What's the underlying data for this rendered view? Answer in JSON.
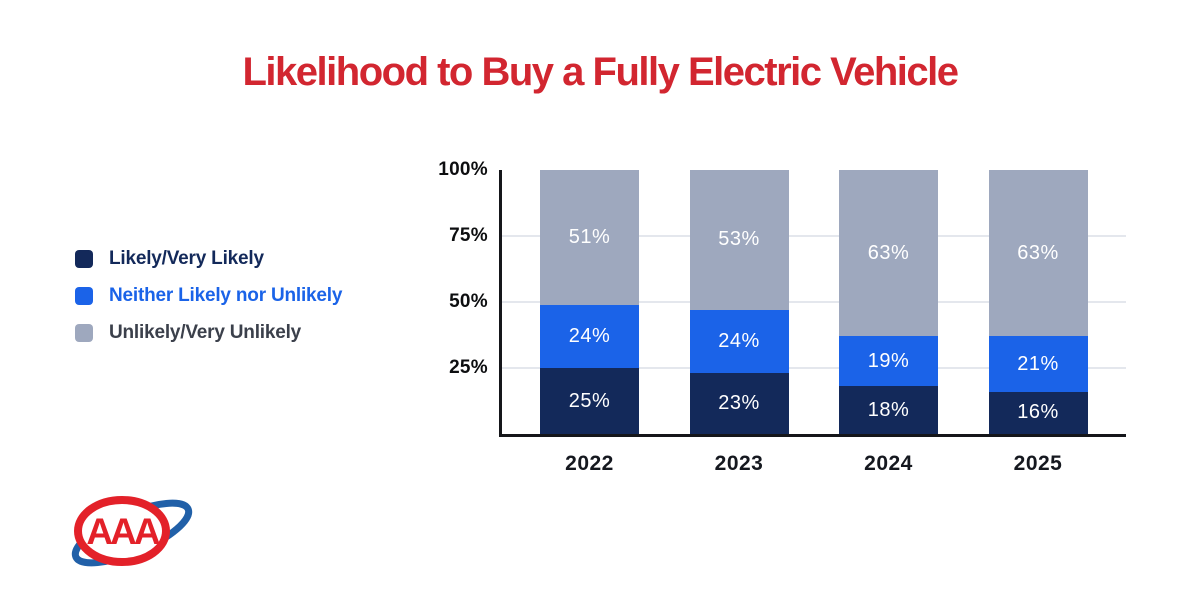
{
  "title": {
    "text": "Likelihood to Buy a Fully Electric Vehicle",
    "color": "#D22630"
  },
  "legend": {
    "items": [
      {
        "label": "Likely/Very Likely",
        "swatch": "#13295A",
        "text_color": "#13295A"
      },
      {
        "label": "Neither Likely nor Unlikely",
        "swatch": "#1B63E8",
        "text_color": "#1A63E8"
      },
      {
        "label": "Unlikely/Very Unlikely",
        "swatch": "#9EA8BE",
        "text_color": "#3B404B"
      }
    ]
  },
  "chart_data": {
    "type": "bar",
    "stacked": true,
    "title": "Likelihood to Buy a Fully Electric Vehicle",
    "categories": [
      "2022",
      "2023",
      "2024",
      "2025"
    ],
    "series": [
      {
        "name": "Likely/Very Likely",
        "color": "#13295A",
        "values": [
          25,
          23,
          18,
          16
        ]
      },
      {
        "name": "Neither Likely nor Unlikely",
        "color": "#1B63E8",
        "values": [
          24,
          24,
          19,
          21
        ]
      },
      {
        "name": "Unlikely/Very Unlikely",
        "color": "#9EA8BE",
        "values": [
          51,
          53,
          63,
          63
        ]
      }
    ],
    "value_label_suffix": "%",
    "y_ticks": [
      {
        "label": "100%",
        "value": 100
      },
      {
        "label": "75%",
        "value": 75
      },
      {
        "label": "50%",
        "value": 50
      },
      {
        "label": "25%",
        "value": 25
      }
    ],
    "ylim": [
      0,
      100
    ],
    "grid": true,
    "grid_color": "#E4E7ED",
    "legend_position": "left",
    "xlabel": "",
    "ylabel": ""
  },
  "logo": {
    "name": "AAA",
    "text": "AAA",
    "oval_color": "#E32129",
    "swoosh_color": "#2160A8"
  }
}
